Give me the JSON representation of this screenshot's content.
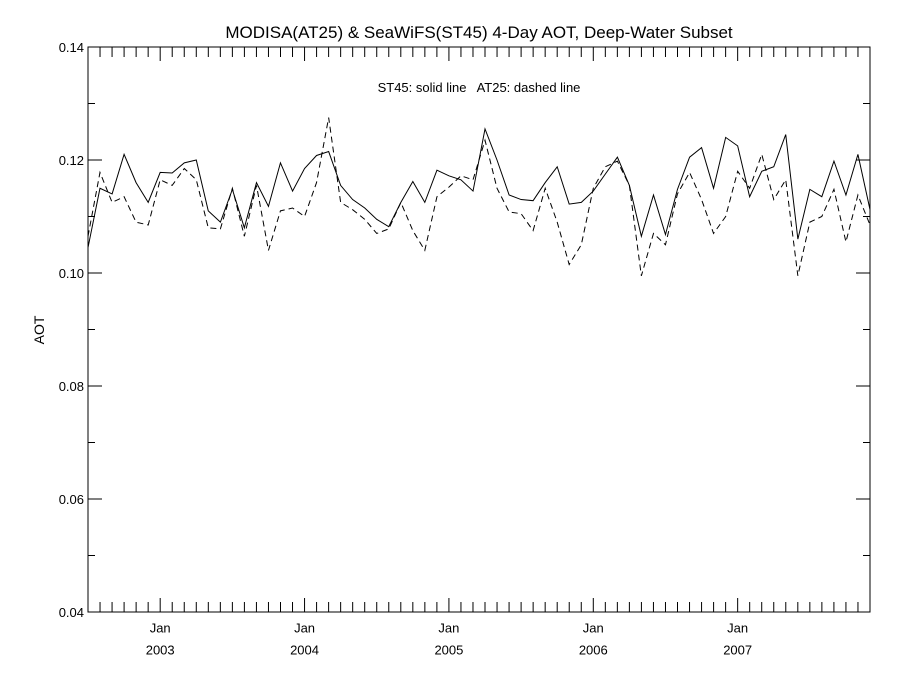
{
  "chart_data": {
    "type": "line",
    "title": "MODISA(AT25) & SeaWiFS(ST45) 4-Day AOT, Deep-Water Subset",
    "annotation": "ST45: solid line   AT25: dashed line",
    "xlabel": "",
    "ylabel": "AOT",
    "x_range": [
      2002.5,
      2007.9167
    ],
    "ylim": [
      0.04,
      0.14
    ],
    "y_ticks": [
      {
        "value": 0.04,
        "label": "0.04"
      },
      {
        "value": 0.06,
        "label": "0.06"
      },
      {
        "value": 0.08,
        "label": "0.08"
      },
      {
        "value": 0.1,
        "label": "0.10"
      },
      {
        "value": 0.12,
        "label": "0.12"
      },
      {
        "value": 0.14,
        "label": "0.14"
      }
    ],
    "x_ticks": [
      {
        "value": 2003.0,
        "month": "Jan",
        "year": "2003"
      },
      {
        "value": 2004.0,
        "month": "Jan",
        "year": "2004"
      },
      {
        "value": 2005.0,
        "month": "Jan",
        "year": "2005"
      },
      {
        "value": 2006.0,
        "month": "Jan",
        "year": "2006"
      },
      {
        "value": 2007.0,
        "month": "Jan",
        "year": "2007"
      }
    ],
    "grid": false,
    "legend": "none",
    "series": [
      {
        "line_style": "solid",
        "color": "#000000",
        "x": [
          2002.5,
          2002.583,
          2002.667,
          2002.75,
          2002.833,
          2002.917,
          2003.0,
          2003.083,
          2003.167,
          2003.25,
          2003.333,
          2003.417,
          2003.5,
          2003.583,
          2003.667,
          2003.75,
          2003.833,
          2003.917,
          2004.0,
          2004.083,
          2004.167,
          2004.25,
          2004.333,
          2004.417,
          2004.5,
          2004.583,
          2004.667,
          2004.75,
          2004.833,
          2004.917,
          2005.0,
          2005.083,
          2005.167,
          2005.25,
          2005.333,
          2005.417,
          2005.5,
          2005.583,
          2005.667,
          2005.75,
          2005.833,
          2005.917,
          2006.0,
          2006.083,
          2006.167,
          2006.25,
          2006.333,
          2006.417,
          2006.5,
          2006.583,
          2006.667,
          2006.75,
          2006.833,
          2006.917,
          2007.0,
          2007.083,
          2007.167,
          2007.25,
          2007.333,
          2007.417,
          2007.5,
          2007.583,
          2007.667,
          2007.75,
          2007.833,
          2007.917
        ],
        "y": [
          0.1045,
          0.115,
          0.114,
          0.121,
          0.116,
          0.1125,
          0.1178,
          0.1177,
          0.1195,
          0.12,
          0.111,
          0.109,
          0.1148,
          0.108,
          0.116,
          0.1118,
          0.1195,
          0.1145,
          0.1185,
          0.1208,
          0.1215,
          0.1155,
          0.113,
          0.1115,
          0.1095,
          0.1082,
          0.1125,
          0.1162,
          0.1125,
          0.1182,
          0.1172,
          0.1165,
          0.1145,
          0.1255,
          0.12,
          0.1138,
          0.113,
          0.1128,
          0.116,
          0.1188,
          0.1122,
          0.1125,
          0.1145,
          0.1175,
          0.1205,
          0.1155,
          0.1065,
          0.1138,
          0.1068,
          0.1148,
          0.1205,
          0.1222,
          0.115,
          0.124,
          0.1225,
          0.1135,
          0.118,
          0.1188,
          0.1245,
          0.106,
          0.1148,
          0.1135,
          0.1198,
          0.1138,
          0.121,
          0.1112
        ]
      },
      {
        "line_style": "dashed",
        "color": "#000000",
        "x": [
          2002.5,
          2002.583,
          2002.667,
          2002.75,
          2002.833,
          2002.917,
          2003.0,
          2003.083,
          2003.167,
          2003.25,
          2003.333,
          2003.417,
          2003.5,
          2003.583,
          2003.667,
          2003.75,
          2003.833,
          2003.917,
          2004.0,
          2004.083,
          2004.167,
          2004.25,
          2004.333,
          2004.417,
          2004.5,
          2004.583,
          2004.667,
          2004.75,
          2004.833,
          2004.917,
          2005.0,
          2005.083,
          2005.167,
          2005.25,
          2005.333,
          2005.417,
          2005.5,
          2005.583,
          2005.667,
          2005.75,
          2005.833,
          2005.917,
          2006.0,
          2006.083,
          2006.167,
          2006.25,
          2006.333,
          2006.417,
          2006.5,
          2006.583,
          2006.667,
          2006.75,
          2006.833,
          2006.917,
          2007.0,
          2007.083,
          2007.167,
          2007.25,
          2007.333,
          2007.417,
          2007.5,
          2007.583,
          2007.667,
          2007.75,
          2007.833,
          2007.917
        ],
        "y": [
          0.1065,
          0.1178,
          0.1125,
          0.1135,
          0.109,
          0.1085,
          0.1165,
          0.1155,
          0.1185,
          0.1165,
          0.108,
          0.1078,
          0.115,
          0.1065,
          0.1155,
          0.104,
          0.111,
          0.1115,
          0.11,
          0.116,
          0.1275,
          0.1125,
          0.1112,
          0.1095,
          0.107,
          0.1078,
          0.1125,
          0.1075,
          0.104,
          0.1135,
          0.1152,
          0.1172,
          0.1165,
          0.1235,
          0.115,
          0.1108,
          0.1105,
          0.1075,
          0.115,
          0.109,
          0.1015,
          0.105,
          0.115,
          0.1188,
          0.1198,
          0.1155,
          0.0995,
          0.107,
          0.105,
          0.114,
          0.1178,
          0.113,
          0.107,
          0.11,
          0.118,
          0.115,
          0.121,
          0.113,
          0.1165,
          0.0995,
          0.109,
          0.11,
          0.1148,
          0.1055,
          0.1138,
          0.1085
        ]
      }
    ]
  }
}
